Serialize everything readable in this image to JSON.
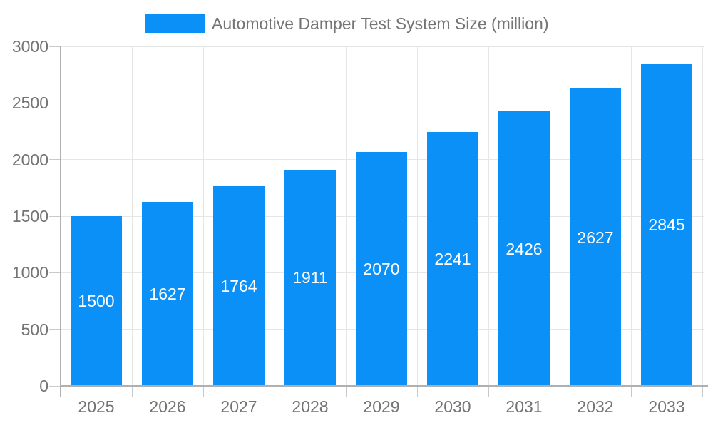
{
  "chart_data": {
    "type": "bar",
    "title": "Automotive Damper Test System Size (million)",
    "legend": {
      "label": "Automotive Damper Test System Size (million)",
      "position": "top-center"
    },
    "categories": [
      "2025",
      "2026",
      "2027",
      "2028",
      "2029",
      "2030",
      "2031",
      "2032",
      "2033"
    ],
    "series": [
      {
        "name": "Automotive Damper Test System Size (million)",
        "values": [
          1500,
          1627,
          1764,
          1911,
          2070,
          2241,
          2426,
          2627,
          2845
        ]
      }
    ],
    "values": [
      1500,
      1627,
      1764,
      1911,
      2070,
      2241,
      2426,
      2627,
      2845
    ],
    "value_labels": [
      "1500",
      "1627",
      "1764",
      "1911",
      "2070",
      "2241",
      "2426",
      "2627",
      "2845"
    ],
    "xlabel": "",
    "ylabel": "",
    "ylim": [
      0,
      3000
    ],
    "ytick_step": 500,
    "yticks": [
      "0",
      "500",
      "1000",
      "1500",
      "2000",
      "2500",
      "3000"
    ],
    "grid": true,
    "colors": {
      "bar": "#0b90f8",
      "gridline": "#e6e6e6",
      "axis": "#b0b0b0",
      "tick": "#c9c9c9",
      "axis_text": "#747474",
      "value_text": "#ffffff",
      "background": "#ffffff"
    }
  }
}
